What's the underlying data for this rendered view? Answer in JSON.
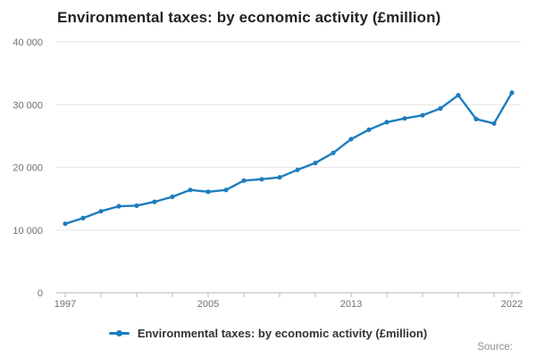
{
  "title": "Environmental taxes: by economic activity (£million)",
  "legend": {
    "label": "Environmental taxes: by economic activity (£million)"
  },
  "source_label": "Source:",
  "colors": {
    "line": "#1d7dbf",
    "grid": "#e6e6e6",
    "axis": "#b0b8c4",
    "tick_label": "#707070",
    "title_text": "#232323",
    "legend_text": "#333333",
    "source_text": "#8e8e8e",
    "background": "#ffffff"
  },
  "chart_data": {
    "type": "line",
    "title": "Environmental taxes: by economic activity (£million)",
    "xlabel": "",
    "ylabel": "",
    "x": [
      1997,
      1998,
      1999,
      2000,
      2001,
      2002,
      2003,
      2004,
      2005,
      2006,
      2007,
      2008,
      2009,
      2010,
      2011,
      2012,
      2013,
      2014,
      2015,
      2016,
      2017,
      2018,
      2019,
      2020,
      2021,
      2022
    ],
    "series": [
      {
        "name": "Environmental taxes: by economic activity (£million)",
        "values": [
          11000,
          11900,
          13000,
          13800,
          13900,
          14500,
          15300,
          16400,
          16100,
          16400,
          17900,
          18100,
          18400,
          19600,
          20700,
          22300,
          24500,
          26000,
          27200,
          27800,
          28300,
          29400,
          31500,
          27700,
          27000,
          31900
        ]
      }
    ],
    "ylim": [
      0,
      40000
    ],
    "yticks": [
      {
        "value": 0,
        "label": "0"
      },
      {
        "value": 10000,
        "label": "10 000"
      },
      {
        "value": 20000,
        "label": "20 000"
      },
      {
        "value": 30000,
        "label": "30 000"
      },
      {
        "value": 40000,
        "label": "40 000"
      }
    ],
    "xticks_labeled": [
      {
        "value": 1997,
        "label": "1997"
      },
      {
        "value": 2005,
        "label": "2005"
      },
      {
        "value": 2013,
        "label": "2013"
      },
      {
        "value": 2022,
        "label": "2022"
      }
    ],
    "xtick_minor_step": 2,
    "grid": "horizontal",
    "legend_position": "bottom",
    "marker": "circle"
  }
}
